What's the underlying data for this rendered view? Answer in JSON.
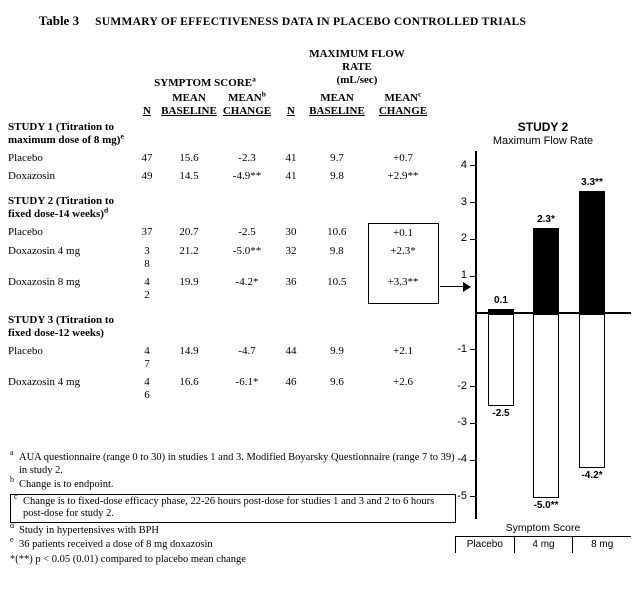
{
  "title": {
    "label": "Table 3",
    "text": "SUMMARY OF EFFECTIVENESS DATA IN PLACEBO CONTROLLED TRIALS"
  },
  "table": {
    "group_headers": {
      "symptom_score": {
        "text": "SYMPTOM SCORE",
        "sup": "a"
      },
      "max_flow": {
        "lines": "MAXIMUM FLOW\nRATE\n(mL/sec)"
      }
    },
    "columns": [
      {
        "top": "",
        "sup": "",
        "bottom": "N"
      },
      {
        "top": "MEAN",
        "sup": "",
        "bottom": "BASELINE"
      },
      {
        "top": "MEAN",
        "sup": "b",
        "bottom": "CHANGE"
      },
      {
        "top": "",
        "sup": "",
        "bottom": "N"
      },
      {
        "top": "MEAN",
        "sup": "",
        "bottom": "BASELINE"
      },
      {
        "top": "MEAN",
        "sup": "c",
        "bottom": "CHANGE"
      }
    ],
    "rows": [
      {
        "type": "study",
        "label": "STUDY 1 (Titration to maximum dose of 8 mg)",
        "sup": "e",
        "cells": [
          "",
          "",
          "",
          "",
          "",
          ""
        ]
      },
      {
        "type": "data",
        "label": "Placebo",
        "sup": "",
        "cells": [
          "47",
          "15.6",
          "-2.3",
          "41",
          "9.7",
          "+0.7"
        ]
      },
      {
        "type": "data",
        "label": "Doxazosin",
        "sup": "",
        "cells": [
          "49",
          "14.5",
          "-4.9**",
          "41",
          "9.8",
          "+2.9**"
        ]
      },
      {
        "type": "study",
        "label": "STUDY 2 (Titration to fixed dose-14 weeks)",
        "sup": "d",
        "cells": [
          "",
          "",
          "",
          "",
          "",
          ""
        ]
      },
      {
        "type": "data",
        "label": "Placebo",
        "sup": "",
        "cells": [
          "37",
          "20.7",
          "-2.5",
          "30",
          "10.6",
          "+0.1"
        ]
      },
      {
        "type": "data",
        "label": "Doxazosin 4 mg",
        "sup": "",
        "cells": [
          "3\n8",
          "21.2",
          "-5.0**",
          "32",
          "9.8",
          "+2.3*"
        ]
      },
      {
        "type": "data",
        "label": "Doxazosin 8 mg",
        "sup": "",
        "cells": [
          "4\n2",
          "19.9",
          "-4.2*",
          "36",
          "10.5",
          "+3.3**"
        ]
      },
      {
        "type": "study",
        "label": "STUDY 3 (Titration to fixed dose-12 weeks)",
        "sup": "",
        "cells": [
          "",
          "",
          "",
          "",
          "",
          ""
        ]
      },
      {
        "type": "data",
        "label": "Placebo",
        "sup": "",
        "cells": [
          "4\n7",
          "14.9",
          "-4.7",
          "44",
          "9.9",
          "+2.1"
        ]
      },
      {
        "type": "data",
        "label": "Doxazosin 4 mg",
        "sup": "",
        "cells": [
          "4\n6",
          "16.6",
          "-6.1*",
          "46",
          "9.6",
          "+2.6"
        ]
      }
    ],
    "boxed_rows": [
      4,
      5,
      6
    ]
  },
  "footnotes": [
    {
      "sup": "a",
      "text": "AUA questionnaire (range 0 to 30) in studies 1 and 3. Modified Boyarsky Questionnaire (range 7 to 39) in study 2.",
      "boxed": false
    },
    {
      "sup": "b",
      "text": "Change is to endpoint.",
      "boxed": false
    },
    {
      "sup": "c",
      "text": "Change is to fixed-dose efficacy phase, 22-26 hours post-dose for studies 1 and 3 and 2 to 6 hours post-dose for study 2.",
      "boxed": true
    },
    {
      "sup": "d",
      "text": "Study in hypertensives with BPH",
      "boxed": false
    },
    {
      "sup": "e",
      "text": "36 patients received a dose of 8 mg doxazosin",
      "boxed": false
    },
    {
      "sup": "",
      "text": "*(**) p < 0.05 (0.01) compared to placebo mean change",
      "boxed": false
    }
  ],
  "chart_data": {
    "type": "bar",
    "title": "STUDY 2",
    "subtitle": "Maximum Flow Rate",
    "categories": [
      "Placebo",
      "4 mg",
      "8 mg"
    ],
    "series": [
      {
        "name": "Maximum Flow Rate",
        "values": [
          0.1,
          2.3,
          3.3
        ],
        "labels": [
          "0.1",
          "2.3*",
          "3.3**"
        ],
        "fill": "#000000"
      },
      {
        "name": "Symptom Score",
        "values": [
          -2.5,
          -5.0,
          -4.2
        ],
        "labels": [
          "-2.5",
          "-5.0**",
          "-4.2*"
        ],
        "fill": "#ffffff"
      }
    ],
    "ylim": [
      -5.6,
      4.4
    ],
    "yticks": [
      4,
      3,
      2,
      1,
      -1,
      -2,
      -3,
      -4,
      -5
    ],
    "bottom_axis_label": "Symptom Score",
    "legend_position": "none",
    "grid": false
  }
}
